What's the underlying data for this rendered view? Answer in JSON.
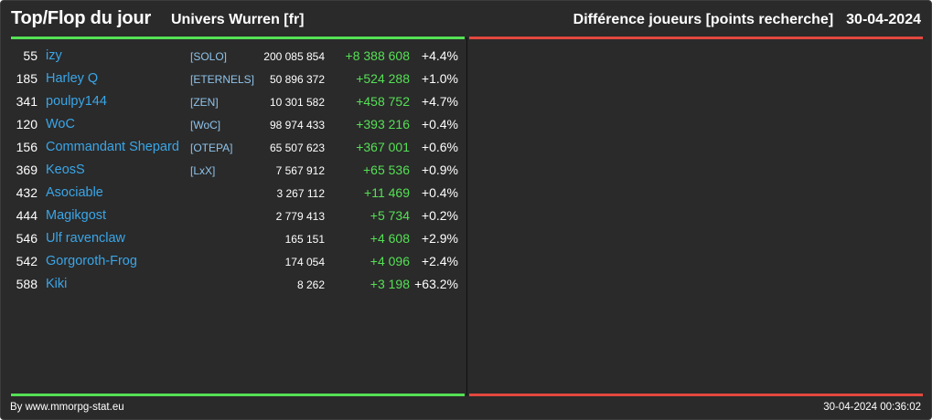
{
  "header": {
    "title": "Top/Flop du jour",
    "universe": "Univers Wurren [fr]",
    "stat_label": "Différence joueurs [points recherche]",
    "date": "30-04-2024"
  },
  "colors": {
    "background": "#2a2a2a",
    "top_accent": "#55e055",
    "flop_accent": "#e2483f",
    "player_link": "#3aa6e8",
    "alliance_tag": "#8fc3ea",
    "positive_diff": "#55e055"
  },
  "top_rows": [
    {
      "rank": "55",
      "player": "izy",
      "alliance": "[SOLO]",
      "points": "200 085 854",
      "diff": "+8 388 608",
      "pct": "+4.4%"
    },
    {
      "rank": "185",
      "player": "Harley Q",
      "alliance": "[ETERNELS]",
      "points": "50 896 372",
      "diff": "+524 288",
      "pct": "+1.0%"
    },
    {
      "rank": "341",
      "player": "poulpy144",
      "alliance": "[ZEN]",
      "points": "10 301 582",
      "diff": "+458 752",
      "pct": "+4.7%"
    },
    {
      "rank": "120",
      "player": "WoC",
      "alliance": "[WoC]",
      "points": "98 974 433",
      "diff": "+393 216",
      "pct": "+0.4%"
    },
    {
      "rank": "156",
      "player": "Commandant Shepard",
      "alliance": "[OTEPA]",
      "points": "65 507 623",
      "diff": "+367 001",
      "pct": "+0.6%"
    },
    {
      "rank": "369",
      "player": "KeosS",
      "alliance": "[LxX]",
      "points": "7 567 912",
      "diff": "+65 536",
      "pct": "+0.9%"
    },
    {
      "rank": "432",
      "player": "Asociable",
      "alliance": "",
      "points": "3 267 112",
      "diff": "+11 469",
      "pct": "+0.4%"
    },
    {
      "rank": "444",
      "player": "Magikgost",
      "alliance": "",
      "points": "2 779 413",
      "diff": "+5 734",
      "pct": "+0.2%"
    },
    {
      "rank": "546",
      "player": "Ulf ravenclaw",
      "alliance": "",
      "points": "165 151",
      "diff": "+4 608",
      "pct": "+2.9%"
    },
    {
      "rank": "542",
      "player": "Gorgoroth-Frog",
      "alliance": "",
      "points": "174 054",
      "diff": "+4 096",
      "pct": "+2.4%"
    },
    {
      "rank": "588",
      "player": "Kiki",
      "alliance": "",
      "points": "8 262",
      "diff": "+3 198",
      "pct": "+63.2%"
    }
  ],
  "flop_rows": [],
  "footer": {
    "credit": "By www.mmorpg-stat.eu",
    "timestamp": "30-04-2024 00:36:02"
  }
}
